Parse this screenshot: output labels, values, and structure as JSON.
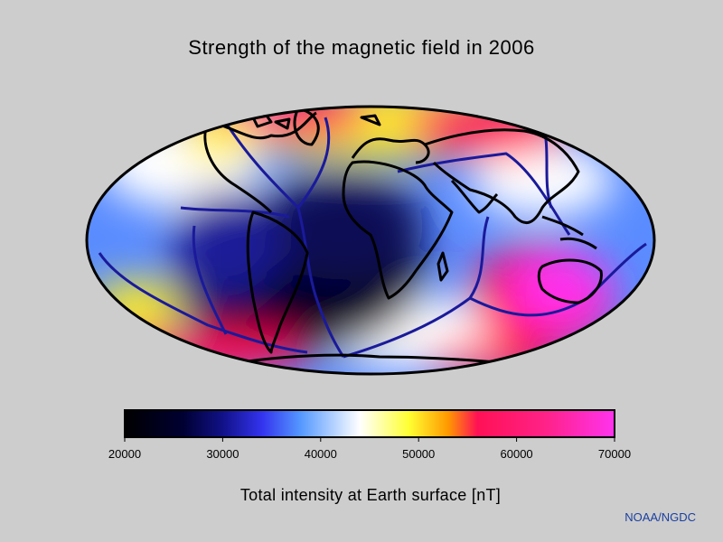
{
  "title": "Strength of the magnetic field in 2006",
  "colorbar": {
    "label": "Total intensity at Earth surface [nT]",
    "min": 20000,
    "max": 70000,
    "ticks": [
      "20000",
      "30000",
      "40000",
      "50000",
      "60000",
      "70000"
    ],
    "stops": [
      {
        "value": 20000,
        "color": "#000000"
      },
      {
        "value": 26000,
        "color": "#000033"
      },
      {
        "value": 30000,
        "color": "#111188"
      },
      {
        "value": 34000,
        "color": "#3333ee"
      },
      {
        "value": 38000,
        "color": "#5599ff"
      },
      {
        "value": 44000,
        "color": "#ffffff"
      },
      {
        "value": 49000,
        "color": "#ffff33"
      },
      {
        "value": 53000,
        "color": "#ff9900"
      },
      {
        "value": 56000,
        "color": "#ff1155"
      },
      {
        "value": 63000,
        "color": "#ff2288"
      },
      {
        "value": 70000,
        "color": "#ff33ee"
      }
    ]
  },
  "credit": "NOAA/NGDC",
  "projection": "mollweide",
  "colors": {
    "background": "#cdcdcd",
    "coastline": "#000000",
    "plate_boundary": "#1a1a9a"
  }
}
